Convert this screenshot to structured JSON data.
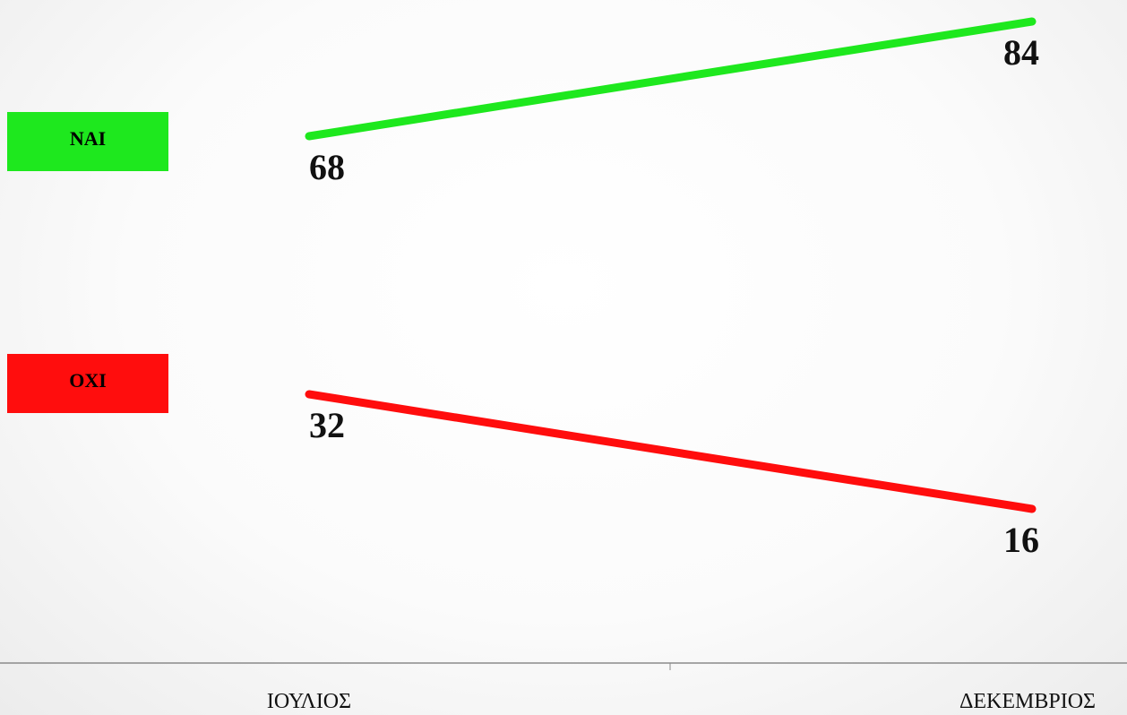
{
  "chart_data": {
    "type": "line",
    "categories": [
      "ΙΟΥΛΙΟΣ",
      "ΔΕΚΕΜΒΡΙΟΣ"
    ],
    "series": [
      {
        "name": "ΝΑΙ",
        "values": [
          68,
          84
        ],
        "color": "#1ee81e"
      },
      {
        "name": "ΟΧΙ",
        "values": [
          32,
          16
        ],
        "color": "#ff0d0d"
      }
    ],
    "title": "",
    "xlabel": "",
    "ylabel": "",
    "grid": false,
    "legend": "left"
  },
  "colors": {
    "axis": "#8a8a8a"
  }
}
